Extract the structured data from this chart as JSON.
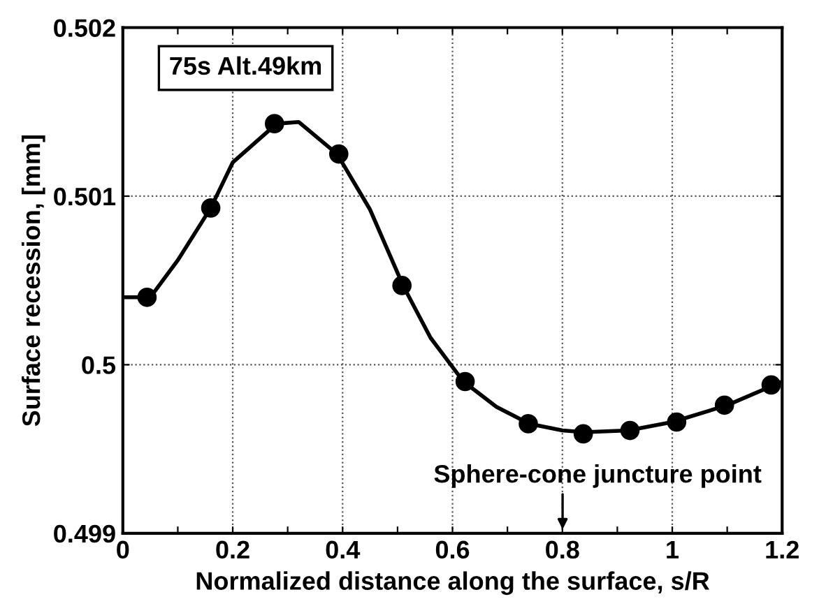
{
  "chart_data": {
    "type": "scatter",
    "xlabel": "Normalized distance along the surface, s/R",
    "ylabel": "Surface recession, [mm]",
    "xlim": [
      0,
      1.2
    ],
    "ylim": [
      0.499,
      0.502
    ],
    "xticks": [
      0,
      {
        "value": 0.1,
        "label": null
      },
      0.2,
      {
        "value": 0.3,
        "label": null
      },
      0.4,
      {
        "value": 0.5,
        "label": null
      },
      0.6,
      {
        "value": 0.7,
        "label": null
      },
      0.8,
      {
        "value": 0.9,
        "label": null
      },
      1,
      {
        "value": 1.1,
        "label": null
      },
      1.2
    ],
    "yticks": [
      0.499,
      0.5,
      0.501,
      0.502
    ],
    "grid": true,
    "marker": "circle",
    "series": [
      {
        "type": "line",
        "color": "#000000",
        "marker": "none",
        "x": [
          0,
          0.05,
          0.1,
          0.16,
          0.2,
          0.28,
          0.32,
          0.39,
          0.45,
          0.51,
          0.56,
          0.62,
          0.68,
          0.74,
          0.8,
          0.84,
          0.92,
          1.0,
          1.1,
          1.2
        ],
        "values": [
          0.5004,
          0.5004,
          0.50062,
          0.50093,
          0.5012,
          0.50143,
          0.50144,
          0.50125,
          0.50092,
          0.50047,
          0.50016,
          0.4999,
          0.49975,
          0.49965,
          0.49961,
          0.4996,
          0.49961,
          0.49966,
          0.49976,
          0.4999
        ]
      },
      {
        "color": "#000000",
        "x": [
          0.044,
          0.16,
          0.276,
          0.393,
          0.508,
          0.623,
          0.738,
          0.838,
          0.923,
          1.008,
          1.095,
          1.18
        ],
        "values": [
          0.5004,
          0.50093,
          0.50143,
          0.50125,
          0.50047,
          0.4999,
          0.49965,
          0.49959,
          0.49961,
          0.49966,
          0.49976,
          0.49988
        ]
      }
    ],
    "annotations": [
      "75s Alt.49km",
      "Sphere-cone juncture point"
    ]
  }
}
